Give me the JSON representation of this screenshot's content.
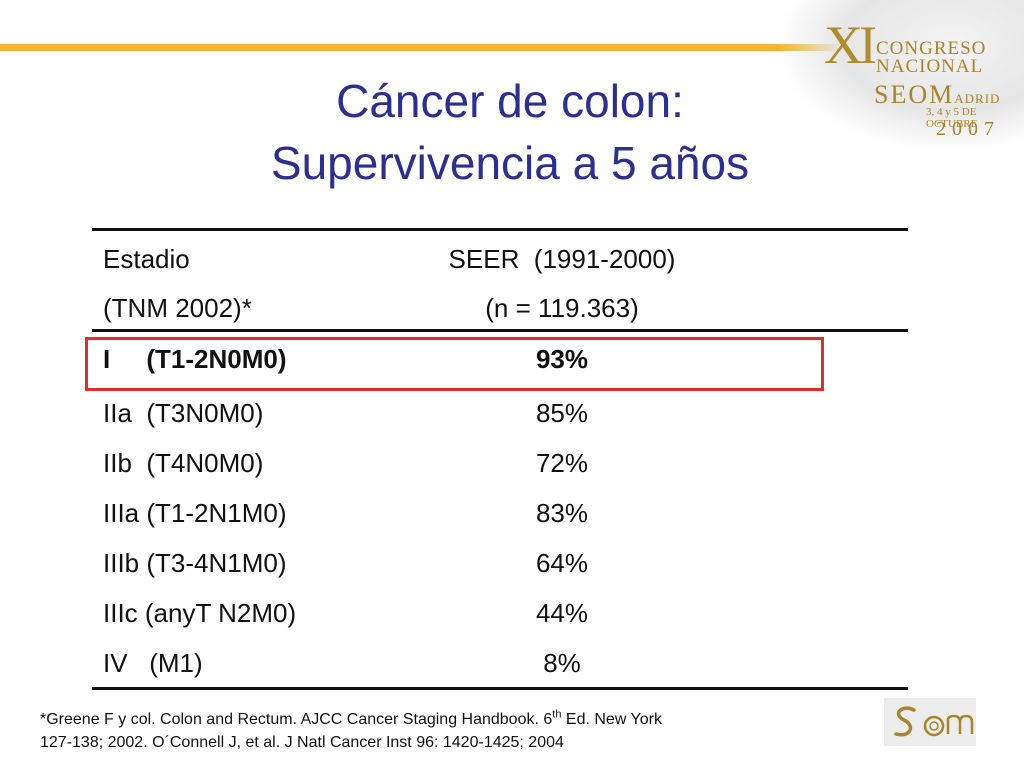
{
  "logo": {
    "roman": "XI",
    "line1": "CONGRESO",
    "line2": "NACIONAL",
    "line3_main": "SEOM",
    "line3_city": "ADRID",
    "dates": "3, 4 y 5 DE OCTUBRE",
    "year": "2007"
  },
  "title": {
    "line1": "Cáncer de colon:",
    "line2": "Supervivencia a 5 años"
  },
  "table": {
    "headers": {
      "col1_line1": "Estadio",
      "col1_line2": "(TNM 2002)*",
      "col2_line1": "SEER  (1991-2000)",
      "col2_line2": "(n = 119.363)"
    },
    "rows": [
      {
        "stage": "I     (T1-2N0M0)",
        "value": "93%"
      },
      {
        "stage": "IIa  (T3N0M0)",
        "value": "85%"
      },
      {
        "stage": "IIb  (T4N0M0)",
        "value": "72%"
      },
      {
        "stage": "IIIa (T1-2N1M0)",
        "value": "83%"
      },
      {
        "stage": "IIIb (T3-4N1M0)",
        "value": "64%"
      },
      {
        "stage": "IIIc (anyT N2M0)",
        "value": "44%"
      },
      {
        "stage": "IV   (M1)",
        "value": "8%"
      }
    ],
    "highlight_color": "#e8292a"
  },
  "footnote": {
    "part1": "*Greene F y col. Colon and Rectum. AJCC Cancer Staging Handbook. 6",
    "sup": "th",
    "part2": " Ed. New York",
    "line2": "127-138; 2002. O´Connell J, et al. J Natl Cancer Inst 96: 1420-1425; 2004"
  },
  "colors": {
    "title": "#2c2f8f",
    "accent_rule": "#f0b72d",
    "logo_gold": "#a9842a"
  }
}
